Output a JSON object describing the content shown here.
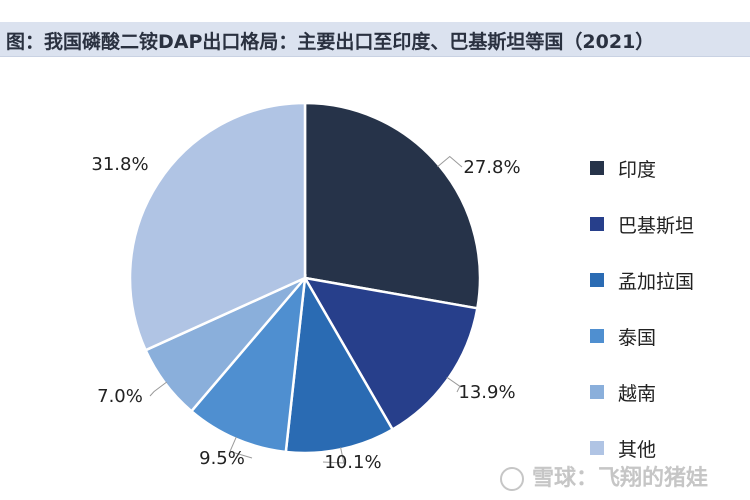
{
  "header": {
    "title": "图：我国磷酸二铵DAP出口格局：主要出口至印度、巴基斯坦等国（2021）"
  },
  "chart_data": {
    "type": "pie",
    "title": "我国磷酸二铵DAP出口格局：主要出口至印度、巴基斯坦等国（2021）",
    "legend_position": "right",
    "slices": [
      {
        "label": "印度",
        "value": 27.8,
        "display": "27.8%",
        "color": "#263349"
      },
      {
        "label": "巴基斯坦",
        "value": 13.9,
        "display": "13.9%",
        "color": "#273f8b"
      },
      {
        "label": "孟加拉国",
        "value": 10.1,
        "display": "10.1%",
        "color": "#2a6bb3"
      },
      {
        "label": "泰国",
        "value": 9.5,
        "display": "9.5%",
        "color": "#4f8fd0"
      },
      {
        "label": "越南",
        "value": 7.0,
        "display": "7.0%",
        "color": "#8aafdb"
      },
      {
        "label": "其他",
        "value": 31.8,
        "display": "31.8%",
        "color": "#b0c4e4"
      }
    ]
  },
  "watermark": {
    "text": "雪球：飞翔的猪娃"
  }
}
